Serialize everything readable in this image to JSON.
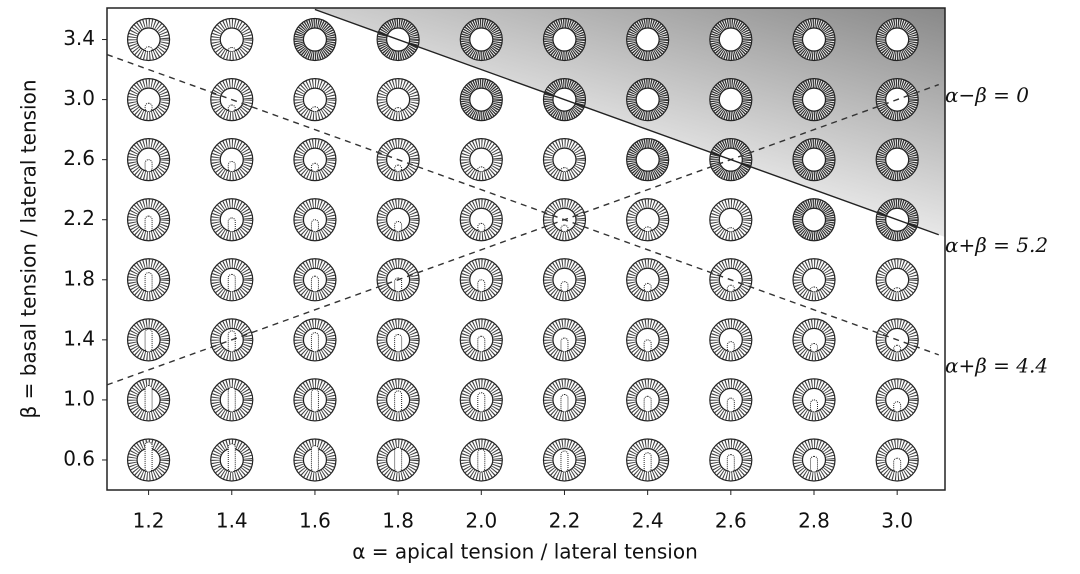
{
  "chart_data": {
    "type": "line",
    "x_label": "α = apical tension / lateral tension",
    "y_label": "β = basal tension / lateral tension",
    "xlim": [
      1.1,
      3.115
    ],
    "ylim": [
      0.4,
      3.61
    ],
    "xticks": [
      1.2,
      1.4,
      1.6,
      1.8,
      {
        "value": 2,
        "label": "2.0"
      },
      2.2,
      2.4,
      2.6,
      2.8,
      {
        "value": 3,
        "label": "3.0"
      }
    ],
    "yticks": [
      0.6,
      {
        "value": 1,
        "label": "1.0"
      },
      1.4,
      1.8,
      2.2,
      2.6,
      {
        "value": 3,
        "label": "3.0"
      },
      3.4
    ],
    "series": [
      {
        "name": "α−β = 0",
        "color": "#333333",
        "dash": true,
        "x": [
          1.1,
          3.1
        ],
        "values": [
          1.1,
          3.1
        ]
      },
      {
        "name": "α+β = 5.2",
        "color": "#222222",
        "dash": false,
        "shade": true,
        "x": [
          1.6,
          3.1
        ],
        "values": [
          3.6,
          2.1
        ]
      },
      {
        "name": "α+β = 4.4",
        "color": "#333333",
        "dash": true,
        "x": [
          1.1,
          3.1
        ],
        "values": [
          3.3,
          1.3
        ]
      }
    ]
  }
}
